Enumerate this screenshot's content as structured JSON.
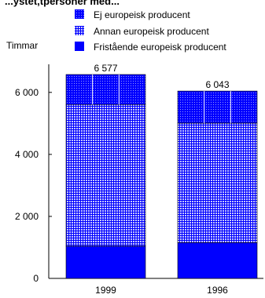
{
  "chart_data": {
    "type": "bar",
    "stacked": true,
    "title": "...ystet,tpersoner med...",
    "ylabel": "Timmar",
    "categories": [
      "1999",
      "1996"
    ],
    "totals": [
      6577,
      6043
    ],
    "total_labels": [
      "6 577",
      "6 043"
    ],
    "ylim": [
      0,
      6700
    ],
    "yticks": [
      0,
      2000,
      4000,
      6000
    ],
    "ytick_labels": [
      "0",
      "2 000",
      "4 000",
      "6 000"
    ],
    "grid": false,
    "legend_position": "top",
    "series": [
      {
        "name": "Fristående europeisk producent",
        "values": [
          1040,
          1150
        ],
        "color": "#0000ff",
        "pattern": "solid"
      },
      {
        "name": "Annan europeisk producent",
        "values": [
          4570,
          3860
        ],
        "color": "#0000ff",
        "pattern": "grid"
      },
      {
        "name": "Ej europeisk producent",
        "values": [
          967,
          1033
        ],
        "color": "#0000ff",
        "pattern": "dots"
      }
    ]
  }
}
